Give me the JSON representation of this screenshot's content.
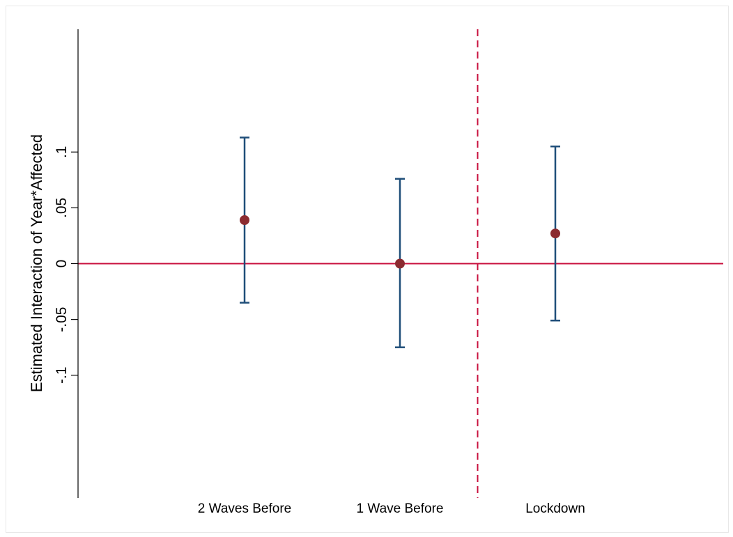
{
  "chart_data": {
    "type": "scatter",
    "title": "",
    "xlabel": "",
    "ylabel": "Estimated Interaction of Year*Affected",
    "categories": [
      "2 Waves Before",
      "1 Wave Before",
      "Lockdown"
    ],
    "estimates": [
      0.039,
      0.0,
      0.027
    ],
    "ci_lower": [
      -0.035,
      -0.075,
      -0.051
    ],
    "ci_upper": [
      0.113,
      0.076,
      0.105
    ],
    "yticks": [
      -0.1,
      -0.05,
      0,
      0.05,
      0.1
    ],
    "ytick_labels": [
      "-.1",
      "-.05",
      "0",
      ".05",
      ".1"
    ],
    "ylim": [
      -0.21,
      0.21
    ],
    "reference_line_y": 0,
    "vertical_reference_after_category": "1 Wave Before",
    "grid": false,
    "colors": {
      "point": "#8b2b30",
      "errorbar": "#1f4e79",
      "reference": "#c8103e"
    }
  }
}
